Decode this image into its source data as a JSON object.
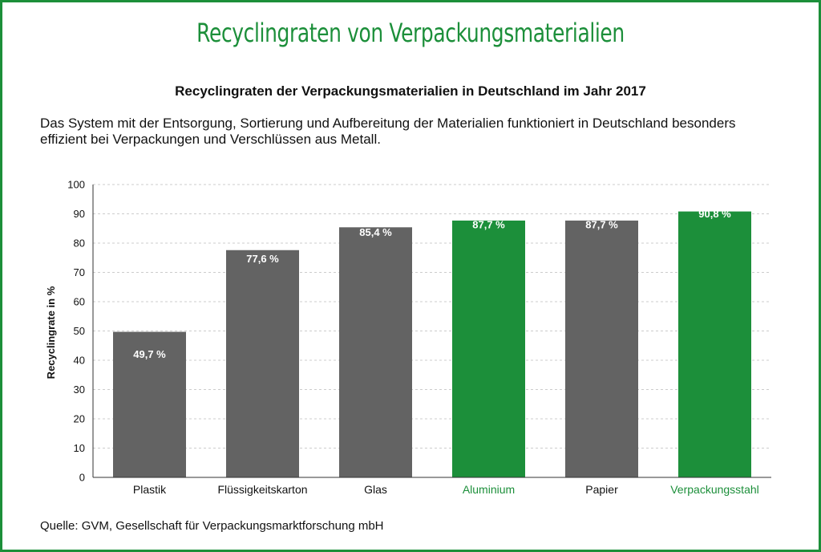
{
  "headline": "Recyclingraten von Verpackungsmaterialien",
  "subtitle": "Recyclingraten der Verpackungsmaterialien in Deutschland im Jahr 2017",
  "description": "Das System mit der Entsorgung, Sortierung und Aufbereitung der Materialien funktioniert in Deutschland besonders effizient bei Verpackungen und Verschlüssen aus Metall.",
  "source": "Quelle: GVM, Gesellschaft für Verpackungsmarktforschung mbH",
  "colors": {
    "frame": "#1c8f3a",
    "highlight": "#1c8f3a",
    "bar": "#636363",
    "grid": "#cccccc"
  },
  "chart_data": {
    "type": "bar",
    "title": "Recyclingraten der Verpackungsmaterialien in Deutschland im Jahr 2017",
    "xlabel": "",
    "ylabel": "Recyclingrate in %",
    "ylim": [
      0,
      100
    ],
    "yticks": [
      0,
      10,
      20,
      30,
      40,
      50,
      60,
      70,
      80,
      90,
      100
    ],
    "grid": "horizontal dashed",
    "legend": "none",
    "categories": [
      "Plastik",
      "Flüssigkeitskarton",
      "Glas",
      "Aluminium",
      "Papier",
      "Verpackungsstahl"
    ],
    "values": [
      49.7,
      77.6,
      85.4,
      87.7,
      87.7,
      90.8
    ],
    "data_labels": [
      "49,7 %",
      "77,6 %",
      "85,4 %",
      "87,7 %",
      "87,7 %",
      "90,8 %"
    ],
    "highlighted": [
      false,
      false,
      false,
      true,
      false,
      true
    ]
  }
}
